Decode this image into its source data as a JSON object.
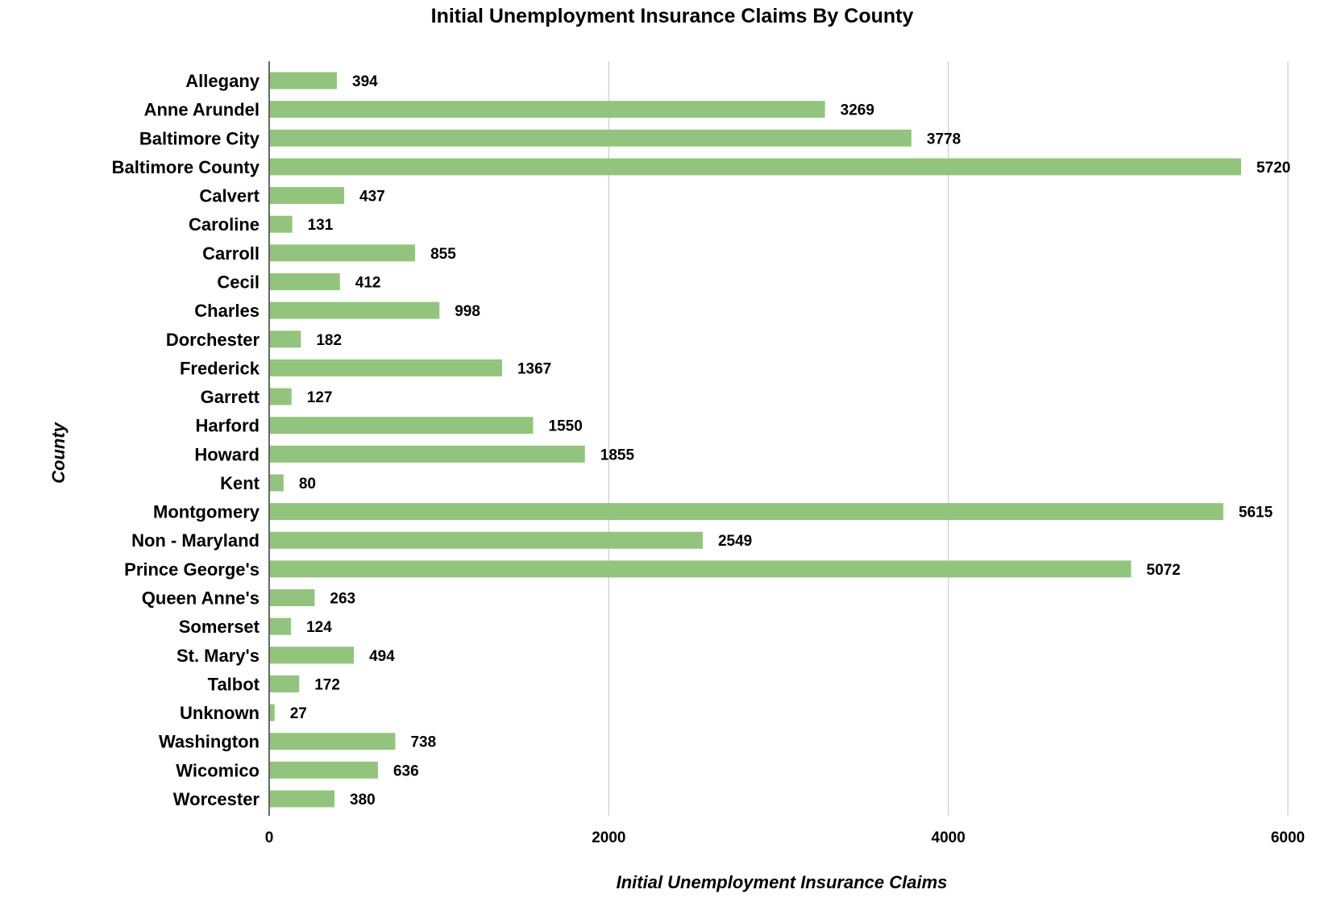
{
  "chart_data": {
    "type": "bar",
    "orientation": "horizontal",
    "title": "Initial Unemployment Insurance Claims By County",
    "xlabel": "Initial Unemployment Insurance Claims",
    "ylabel": "County",
    "xlim": [
      0,
      6000
    ],
    "xticks": [
      0,
      2000,
      4000,
      6000
    ],
    "grid": true,
    "bar_color": "#93c47d",
    "categories": [
      "Allegany",
      "Anne Arundel",
      "Baltimore City",
      "Baltimore County",
      "Calvert",
      "Caroline",
      "Carroll",
      "Cecil",
      "Charles",
      "Dorchester",
      "Frederick",
      "Garrett",
      "Harford",
      "Howard",
      "Kent",
      "Montgomery",
      "Non - Maryland",
      "Prince George's",
      "Queen Anne's",
      "Somerset",
      "St. Mary's",
      "Talbot",
      "Unknown",
      "Washington",
      "Wicomico",
      "Worcester"
    ],
    "values": [
      394,
      3269,
      3778,
      5720,
      437,
      131,
      855,
      412,
      998,
      182,
      1367,
      127,
      1550,
      1855,
      80,
      5615,
      2549,
      5072,
      263,
      124,
      494,
      172,
      27,
      738,
      636,
      380
    ]
  }
}
